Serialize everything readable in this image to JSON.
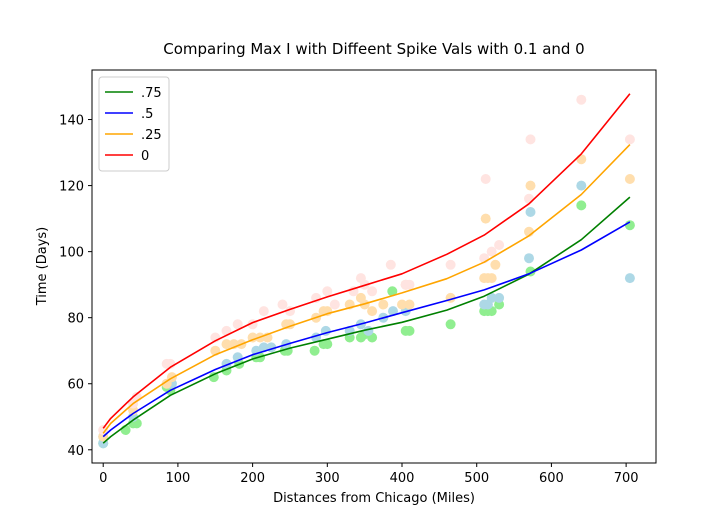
{
  "chart_data": {
    "type": "line",
    "title": "Comparing Max I with Diffeent Spike Vals with 0.1 and 0",
    "xlabel": "Distances from Chicago (Miles)",
    "ylabel": "Time (Days)",
    "xlim": [
      -15,
      740
    ],
    "ylim": [
      36,
      155
    ],
    "xticks": [
      0,
      100,
      200,
      300,
      400,
      500,
      600,
      700
    ],
    "yticks": [
      40,
      60,
      80,
      100,
      120,
      140
    ],
    "grid": false,
    "legend_position": "upper-left",
    "series": [
      {
        "name": ".75",
        "color": "#008000",
        "point_color": "#90ee90",
        "x": [
          0,
          10,
          40,
          90,
          150,
          200,
          250,
          300,
          350,
          400,
          460,
          510,
          570,
          640,
          705
        ],
        "y": [
          42,
          44,
          49,
          56.5,
          63,
          67.5,
          70.8,
          73.5,
          76.2,
          78.6,
          82.3,
          86.5,
          93.2,
          103.6,
          116.5
        ],
        "points": [
          [
            0,
            42
          ],
          [
            30,
            46
          ],
          [
            40,
            48
          ],
          [
            45,
            48
          ],
          [
            85,
            59
          ],
          [
            90,
            58
          ],
          [
            148,
            62
          ],
          [
            165,
            64
          ],
          [
            182,
            66
          ],
          [
            205,
            68
          ],
          [
            210,
            68
          ],
          [
            243,
            70
          ],
          [
            247,
            70
          ],
          [
            283,
            70
          ],
          [
            295,
            72
          ],
          [
            300,
            72
          ],
          [
            330,
            74
          ],
          [
            345,
            74
          ],
          [
            350,
            75
          ],
          [
            360,
            74
          ],
          [
            387,
            88
          ],
          [
            405,
            76
          ],
          [
            410,
            76
          ],
          [
            465,
            78
          ],
          [
            510,
            82
          ],
          [
            515,
            82
          ],
          [
            520,
            82
          ],
          [
            530,
            84
          ],
          [
            572,
            94
          ],
          [
            640,
            114
          ],
          [
            705,
            108
          ]
        ]
      },
      {
        "name": ".5",
        "color": "#0000ff",
        "point_color": "#add8e6",
        "x": [
          0,
          10,
          40,
          90,
          150,
          200,
          250,
          300,
          350,
          400,
          460,
          510,
          570,
          640,
          705
        ],
        "y": [
          44,
          46,
          51,
          58,
          64.3,
          68.8,
          72.2,
          75.5,
          78.4,
          81.5,
          85.2,
          88.4,
          93.3,
          100.5,
          109
        ],
        "points": [
          [
            0,
            42
          ],
          [
            0,
            44
          ],
          [
            40,
            50
          ],
          [
            88,
            60
          ],
          [
            92,
            60
          ],
          [
            165,
            66
          ],
          [
            180,
            68
          ],
          [
            205,
            70
          ],
          [
            215,
            71
          ],
          [
            225,
            71
          ],
          [
            245,
            72
          ],
          [
            285,
            74
          ],
          [
            298,
            76
          ],
          [
            330,
            76
          ],
          [
            345,
            78
          ],
          [
            355,
            76
          ],
          [
            375,
            80
          ],
          [
            388,
            82
          ],
          [
            405,
            82
          ],
          [
            510,
            84
          ],
          [
            515,
            84
          ],
          [
            520,
            86
          ],
          [
            530,
            86
          ],
          [
            570,
            98
          ],
          [
            572,
            112
          ],
          [
            640,
            120
          ],
          [
            705,
            92
          ]
        ]
      },
      {
        "name": ".25",
        "color": "#ffa500",
        "point_color": "#ffdead",
        "x": [
          0,
          10,
          40,
          90,
          150,
          200,
          250,
          300,
          350,
          400,
          460,
          510,
          570,
          640,
          705
        ],
        "y": [
          45,
          48,
          54,
          61.5,
          68.8,
          73.3,
          77.4,
          81.2,
          84.2,
          87.5,
          91.8,
          96.8,
          104.8,
          117.3,
          132.4
        ],
        "points": [
          [
            0,
            44
          ],
          [
            40,
            52
          ],
          [
            85,
            60
          ],
          [
            92,
            62
          ],
          [
            150,
            70
          ],
          [
            165,
            72
          ],
          [
            175,
            72
          ],
          [
            185,
            72
          ],
          [
            200,
            74
          ],
          [
            210,
            74
          ],
          [
            220,
            74
          ],
          [
            245,
            78
          ],
          [
            250,
            78
          ],
          [
            285,
            80
          ],
          [
            295,
            82
          ],
          [
            300,
            82
          ],
          [
            330,
            84
          ],
          [
            345,
            86
          ],
          [
            350,
            84
          ],
          [
            360,
            82
          ],
          [
            375,
            84
          ],
          [
            400,
            84
          ],
          [
            405,
            90
          ],
          [
            410,
            84
          ],
          [
            465,
            86
          ],
          [
            510,
            92
          ],
          [
            512,
            110
          ],
          [
            515,
            92
          ],
          [
            520,
            92
          ],
          [
            525,
            96
          ],
          [
            570,
            106
          ],
          [
            572,
            120
          ],
          [
            640,
            128
          ],
          [
            705,
            122
          ]
        ]
      },
      {
        "name": "0",
        "color": "#ff0000",
        "point_color": "#ffe4e1",
        "x": [
          0,
          10,
          40,
          90,
          150,
          200,
          250,
          300,
          350,
          400,
          460,
          510,
          570,
          640,
          705
        ],
        "y": [
          46.5,
          49.5,
          56,
          65,
          73,
          78.5,
          82.5,
          86.3,
          89.8,
          93.3,
          99.2,
          105,
          114.5,
          129.6,
          147.8
        ],
        "points": [
          [
            0,
            46
          ],
          [
            40,
            54
          ],
          [
            45,
            56
          ],
          [
            85,
            66
          ],
          [
            90,
            66
          ],
          [
            150,
            74
          ],
          [
            165,
            76
          ],
          [
            180,
            78
          ],
          [
            200,
            78
          ],
          [
            215,
            82
          ],
          [
            240,
            84
          ],
          [
            250,
            82
          ],
          [
            285,
            86
          ],
          [
            300,
            88
          ],
          [
            310,
            84
          ],
          [
            335,
            88
          ],
          [
            345,
            92
          ],
          [
            350,
            90
          ],
          [
            360,
            88
          ],
          [
            385,
            96
          ],
          [
            405,
            90
          ],
          [
            410,
            90
          ],
          [
            465,
            96
          ],
          [
            510,
            98
          ],
          [
            512,
            122
          ],
          [
            520,
            100
          ],
          [
            530,
            102
          ],
          [
            570,
            116
          ],
          [
            572,
            134
          ],
          [
            640,
            146
          ],
          [
            705,
            134
          ]
        ]
      }
    ]
  }
}
